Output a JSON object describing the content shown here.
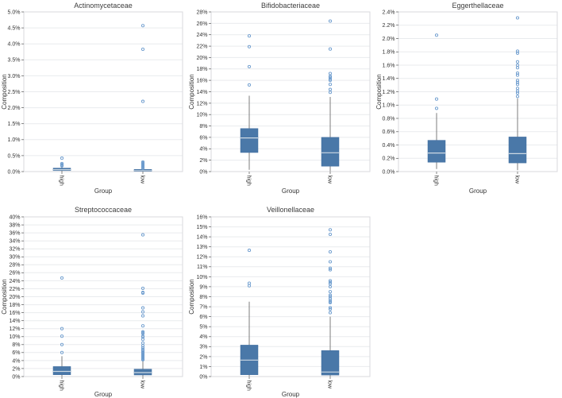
{
  "palette": {
    "box_fill": "#4a78a8",
    "box_edge": "#3f6c9e",
    "median_line": "#cdd9e3",
    "whisker": "#6f6f6f",
    "outlier_stroke": "#6d9cce",
    "gridline": "#e9ebee",
    "panel_border": "#d8dadd",
    "text": "#333333",
    "background": "#ffffff"
  },
  "chart_data": [
    {
      "type": "box",
      "title": "Actinomycetaceae",
      "xlabel": "Group",
      "ylabel": "Composition",
      "unit": "%",
      "grid": true,
      "categories": [
        "high",
        "low"
      ],
      "ylim": [
        0,
        5
      ],
      "yticks": {
        "values": [
          0,
          0.5,
          1,
          1.5,
          2,
          2.5,
          3,
          3.5,
          4,
          4.5,
          5
        ],
        "labels": [
          "0.0%",
          "0.5%",
          "1.0%",
          "1.5%",
          "2.0%",
          "2.5%",
          "3.0%",
          "3.5%",
          "4.0%",
          "4.5%",
          "5.0%"
        ]
      },
      "series": [
        {
          "category": "high",
          "whisker_low": 0.0,
          "q1": 0.03,
          "median": 0.06,
          "q3": 0.11,
          "whisker_high": 0.16,
          "outliers": [
            0.18,
            0.2,
            0.22,
            0.25,
            0.42
          ]
        },
        {
          "category": "low",
          "whisker_low": 0.0,
          "q1": 0.01,
          "median": 0.03,
          "q3": 0.07,
          "whisker_high": 0.12,
          "outliers": [
            0.1,
            0.12,
            0.15,
            0.17,
            0.19,
            0.21,
            0.23,
            0.25,
            0.27,
            0.3,
            2.2,
            3.83,
            4.57
          ]
        }
      ]
    },
    {
      "type": "box",
      "title": "Bifidobacteriaceae",
      "xlabel": "Group",
      "ylabel": "Composition",
      "unit": "%",
      "grid": true,
      "categories": [
        "high",
        "low"
      ],
      "ylim": [
        0,
        28
      ],
      "yticks": {
        "values": [
          0,
          2,
          4,
          6,
          8,
          10,
          12,
          14,
          16,
          18,
          20,
          22,
          24,
          26,
          28
        ],
        "labels": [
          "0%",
          "2%",
          "4%",
          "6%",
          "8%",
          "10%",
          "12%",
          "14%",
          "16%",
          "18%",
          "20%",
          "22%",
          "24%",
          "26%",
          "28%"
        ]
      },
      "series": [
        {
          "category": "high",
          "whisker_low": 0.3,
          "q1": 3.35,
          "median": 5.9,
          "q3": 7.55,
          "whisker_high": 13.3,
          "outliers": [
            15.2,
            18.4,
            21.9,
            23.8
          ]
        },
        {
          "category": "low",
          "whisker_low": 0.05,
          "q1": 0.95,
          "median": 3.3,
          "q3": 6.0,
          "whisker_high": 13.1,
          "outliers": [
            13.9,
            14.4,
            15.3,
            16.0,
            16.2,
            16.5,
            16.7,
            17.2,
            21.5,
            26.4
          ]
        }
      ]
    },
    {
      "type": "box",
      "title": "Eggerthellaceae",
      "xlabel": "Group",
      "ylabel": "Composition",
      "unit": "%",
      "grid": true,
      "categories": [
        "high",
        "low"
      ],
      "ylim": [
        0,
        2.4
      ],
      "yticks": {
        "values": [
          0,
          0.2,
          0.4,
          0.6,
          0.8,
          1,
          1.2,
          1.4,
          1.6,
          1.8,
          2,
          2.2,
          2.4
        ],
        "labels": [
          "0.0%",
          "0.2%",
          "0.4%",
          "0.6%",
          "0.8%",
          "1.0%",
          "1.2%",
          "1.4%",
          "1.6%",
          "1.8%",
          "2.0%",
          "2.2%",
          "2.4%"
        ]
      },
      "series": [
        {
          "category": "high",
          "whisker_low": 0.04,
          "q1": 0.14,
          "median": 0.28,
          "q3": 0.47,
          "whisker_high": 0.88,
          "outliers": [
            0.95,
            1.09,
            2.05
          ]
        },
        {
          "category": "low",
          "whisker_low": 0.02,
          "q1": 0.13,
          "median": 0.27,
          "q3": 0.52,
          "whisker_high": 1.1,
          "outliers": [
            1.13,
            1.18,
            1.21,
            1.25,
            1.31,
            1.34,
            1.37,
            1.45,
            1.48,
            1.56,
            1.6,
            1.65,
            1.78,
            1.81,
            2.31
          ]
        }
      ]
    },
    {
      "type": "box",
      "title": "Streptococcaceae",
      "xlabel": "Group",
      "ylabel": "Composition",
      "unit": "%",
      "grid": true,
      "categories": [
        "high",
        "low"
      ],
      "ylim": [
        0,
        40
      ],
      "yticks": {
        "values": [
          0,
          2,
          4,
          6,
          8,
          10,
          12,
          14,
          16,
          18,
          20,
          22,
          24,
          26,
          28,
          30,
          32,
          34,
          36,
          38,
          40
        ],
        "labels": [
          "0%",
          "2%",
          "4%",
          "6%",
          "8%",
          "10%",
          "12%",
          "14%",
          "16%",
          "18%",
          "20%",
          "22%",
          "24%",
          "26%",
          "28%",
          "30%",
          "32%",
          "34%",
          "36%",
          "38%",
          "40%"
        ]
      },
      "series": [
        {
          "category": "high",
          "whisker_low": 0.05,
          "q1": 0.45,
          "median": 1.3,
          "q3": 2.5,
          "whisker_high": 5.1,
          "outliers": [
            6.0,
            8.0,
            10.1,
            12.0,
            24.7
          ]
        },
        {
          "category": "low",
          "whisker_low": 0.03,
          "q1": 0.4,
          "median": 1.0,
          "q3": 1.85,
          "whisker_high": 4.0,
          "outliers": [
            4.2,
            4.4,
            4.6,
            4.8,
            5.0,
            5.2,
            5.4,
            5.6,
            5.8,
            6.0,
            6.2,
            6.5,
            6.8,
            7.2,
            7.7,
            8.4,
            9.3,
            9.9,
            10.1,
            10.8,
            11.0,
            11.2,
            12.7,
            15.2,
            16.2,
            17.2,
            20.9,
            21.1,
            22.1,
            35.5
          ]
        }
      ]
    },
    {
      "type": "box",
      "title": "Veillonellaceae",
      "xlabel": "Group",
      "ylabel": "Composition",
      "unit": "%",
      "grid": true,
      "categories": [
        "high",
        "low"
      ],
      "ylim": [
        0,
        16
      ],
      "yticks": {
        "values": [
          0,
          1,
          2,
          3,
          4,
          5,
          6,
          7,
          8,
          9,
          10,
          11,
          12,
          13,
          14,
          15,
          16
        ],
        "labels": [
          "0%",
          "1%",
          "2%",
          "3%",
          "4%",
          "5%",
          "6%",
          "7%",
          "8%",
          "9%",
          "10%",
          "11%",
          "12%",
          "13%",
          "14%",
          "15%",
          "16%"
        ]
      },
      "series": [
        {
          "category": "high",
          "whisker_low": 0.03,
          "q1": 0.18,
          "median": 1.65,
          "q3": 3.15,
          "whisker_high": 7.5,
          "outliers": [
            9.1,
            9.35,
            12.65
          ]
        },
        {
          "category": "low",
          "whisker_low": 0.02,
          "q1": 0.15,
          "median": 0.45,
          "q3": 2.6,
          "whisker_high": 6.0,
          "outliers": [
            6.4,
            6.75,
            6.9,
            7.4,
            7.5,
            7.6,
            7.8,
            8.0,
            8.15,
            8.5,
            9.0,
            9.3,
            9.45,
            9.6,
            10.7,
            10.85,
            11.5,
            12.5,
            14.25,
            14.7
          ]
        }
      ]
    }
  ]
}
